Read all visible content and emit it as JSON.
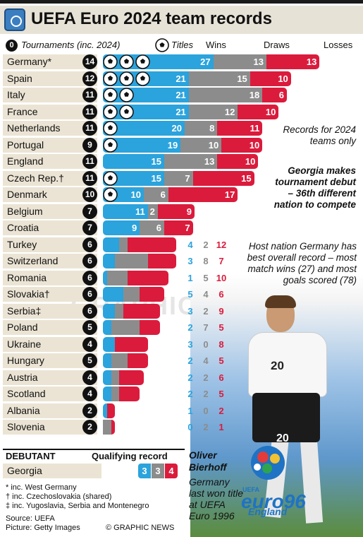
{
  "header": {
    "title": "UEFA Euro 2024 team records"
  },
  "columns": {
    "tournaments_badge": "0",
    "tournaments": "Tournaments (inc. 2024)",
    "titles": "Titles",
    "wins": "Wins",
    "draws": "Draws",
    "losses": "Losses"
  },
  "colors": {
    "wins": "#2ba3dc",
    "draws": "#8c8c8c",
    "losses": "#db1b3c",
    "label_bg": "#ebe4d4"
  },
  "chart_data": {
    "type": "bar",
    "stacked": true,
    "orientation": "horizontal",
    "title": "UEFA Euro 2024 team records",
    "categories": [
      "Germany*",
      "Spain",
      "Italy",
      "France",
      "Netherlands",
      "Portugal",
      "England",
      "Czech Rep.†",
      "Denmark",
      "Belgium",
      "Croatia",
      "Turkey",
      "Switzerland",
      "Romania",
      "Slovakia†",
      "Serbia‡",
      "Poland",
      "Ukraine",
      "Hungary",
      "Austria",
      "Scotland",
      "Albania",
      "Slovenia"
    ],
    "tournaments": [
      14,
      12,
      11,
      11,
      11,
      9,
      11,
      11,
      10,
      7,
      7,
      6,
      6,
      6,
      6,
      6,
      5,
      4,
      5,
      4,
      4,
      2,
      2
    ],
    "titles": [
      3,
      3,
      2,
      2,
      1,
      1,
      0,
      1,
      1,
      0,
      0,
      0,
      0,
      0,
      0,
      0,
      0,
      0,
      0,
      0,
      0,
      0,
      0
    ],
    "series": [
      {
        "name": "Wins",
        "values": [
          27,
          21,
          21,
          21,
          20,
          19,
          15,
          15,
          10,
          11,
          9,
          4,
          3,
          1,
          5,
          3,
          2,
          3,
          2,
          2,
          2,
          1,
          0
        ]
      },
      {
        "name": "Draws",
        "values": [
          13,
          15,
          18,
          12,
          8,
          10,
          13,
          7,
          6,
          2,
          6,
          2,
          8,
          5,
          4,
          2,
          7,
          0,
          4,
          2,
          2,
          0,
          2
        ]
      },
      {
        "name": "Losses",
        "values": [
          13,
          10,
          6,
          10,
          11,
          10,
          10,
          15,
          17,
          9,
          7,
          12,
          7,
          10,
          6,
          9,
          5,
          8,
          5,
          6,
          5,
          2,
          1
        ]
      }
    ]
  },
  "notes": {
    "records": "Records for 2024 teams only",
    "georgia": "Georgia makes tournament debut – 36th different nation to compete",
    "host": "Host nation Germany has best overall record – most match wins (27) and most goals scored (78)"
  },
  "debutant": {
    "heading": "DEBUTANT",
    "qual_heading": "Qualifying record",
    "name": "Georgia",
    "wins": "3",
    "draws": "3",
    "losses": "4"
  },
  "player": {
    "name": "Oliver Bierhoff",
    "caption": "Germany last won title at UEFA Euro 1996",
    "shirt_number": "20"
  },
  "logo": {
    "euro": "euro96",
    "country": "England",
    "uefa": "UEFA"
  },
  "footnotes": [
    "* inc. West Germany",
    "† inc. Czechoslovakia (shared)",
    "‡ inc. Yugoslavia, Serbia and Montenegro"
  ],
  "source": "Source: UEFA",
  "picture": "Picture: Getty Images",
  "credit": "© GRAPHIC NEWS",
  "watermark": "GRAPHIC NEWS"
}
